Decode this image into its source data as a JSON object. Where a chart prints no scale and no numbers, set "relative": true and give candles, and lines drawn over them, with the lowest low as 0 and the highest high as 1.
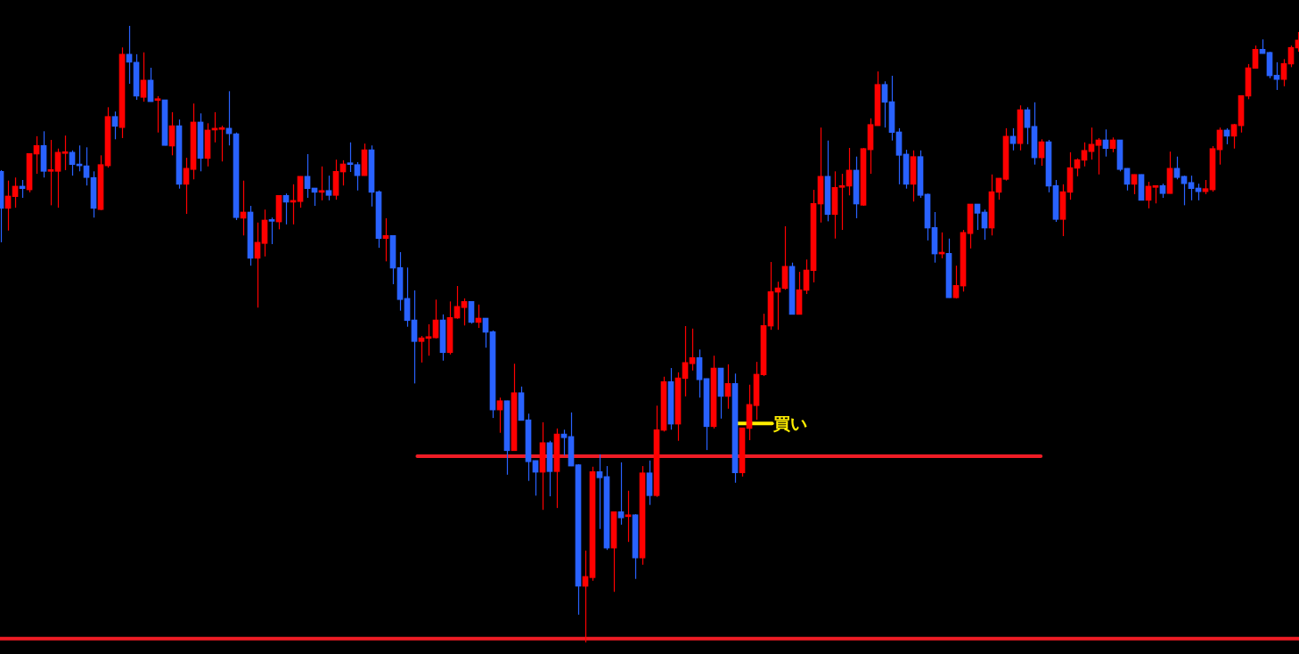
{
  "chart_data": {
    "type": "candlestick",
    "relative": true,
    "categories": [
      null,
      null,
      null,
      null,
      null,
      null,
      null,
      null,
      null,
      null,
      null,
      null,
      null,
      null,
      null,
      null,
      null,
      null,
      null,
      null,
      null,
      null,
      null,
      null,
      null,
      null,
      null,
      null,
      null,
      null,
      null,
      null,
      null,
      null,
      null,
      null,
      null,
      null,
      null,
      null,
      null,
      null,
      null,
      null,
      null,
      null,
      null,
      null,
      null,
      null,
      null,
      null,
      null,
      null,
      null,
      null,
      null,
      null,
      null,
      null,
      null,
      null,
      null,
      null,
      null,
      null,
      null,
      null,
      null,
      null,
      null,
      null,
      null,
      null,
      null,
      null,
      null,
      null,
      null,
      null,
      null,
      null,
      null,
      null,
      null,
      null,
      null,
      null,
      null,
      null,
      null,
      null,
      null,
      null,
      null,
      null,
      null,
      null,
      null,
      null,
      null,
      null,
      null,
      null,
      null,
      null,
      null,
      null,
      null,
      null,
      null,
      null,
      null,
      null,
      null,
      null,
      null,
      null,
      null,
      null,
      null,
      null,
      null,
      null,
      null,
      null,
      null,
      null,
      null,
      null,
      null,
      null,
      null,
      null,
      null,
      null,
      null,
      null,
      null,
      null,
      null,
      null,
      null,
      null,
      null,
      null,
      null,
      null,
      null,
      null,
      null,
      null,
      null,
      null,
      null,
      null,
      null,
      null,
      null,
      null,
      null,
      null,
      null,
      null,
      null,
      null,
      null,
      null,
      null,
      null,
      null,
      null,
      null,
      null,
      null,
      null,
      null,
      null,
      null,
      null,
      null,
      null,
      null
    ],
    "ohlc": [
      [
        0.764,
        0.766,
        0.649,
        0.704
      ],
      [
        0.704,
        0.749,
        0.668,
        0.724
      ],
      [
        0.723,
        0.754,
        0.705,
        0.74
      ],
      [
        0.74,
        0.75,
        0.721,
        0.736
      ],
      [
        0.734,
        0.793,
        0.73,
        0.793
      ],
      [
        0.792,
        0.821,
        0.76,
        0.806
      ],
      [
        0.806,
        0.829,
        0.754,
        0.764
      ],
      [
        0.764,
        0.815,
        0.709,
        0.766
      ],
      [
        0.764,
        0.801,
        0.705,
        0.795
      ],
      [
        0.793,
        0.822,
        0.766,
        0.795
      ],
      [
        0.795,
        0.798,
        0.757,
        0.775
      ],
      [
        0.775,
        0.806,
        0.764,
        0.773
      ],
      [
        0.773,
        0.803,
        0.741,
        0.754
      ],
      [
        0.754,
        0.764,
        0.689,
        0.704
      ],
      [
        0.702,
        0.79,
        0.701,
        0.775
      ],
      [
        0.773,
        0.868,
        0.77,
        0.853
      ],
      [
        0.853,
        0.861,
        0.816,
        0.837
      ],
      [
        0.835,
        0.965,
        0.818,
        0.954
      ],
      [
        0.954,
        1.0,
        0.906,
        0.941
      ],
      [
        0.941,
        0.954,
        0.88,
        0.886
      ],
      [
        0.884,
        0.957,
        0.877,
        0.912
      ],
      [
        0.912,
        0.932,
        0.877,
        0.877
      ],
      [
        0.879,
        0.886,
        0.827,
        0.88
      ],
      [
        0.88,
        0.88,
        0.806,
        0.806
      ],
      [
        0.805,
        0.86,
        0.79,
        0.838
      ],
      [
        0.838,
        0.848,
        0.736,
        0.743
      ],
      [
        0.743,
        0.786,
        0.695,
        0.769
      ],
      [
        0.767,
        0.874,
        0.751,
        0.844
      ],
      [
        0.844,
        0.858,
        0.764,
        0.785
      ],
      [
        0.785,
        0.842,
        0.772,
        0.831
      ],
      [
        0.831,
        0.86,
        0.811,
        0.834
      ],
      [
        0.832,
        0.838,
        0.78,
        0.834
      ],
      [
        0.834,
        0.894,
        0.806,
        0.825
      ],
      [
        0.825,
        0.827,
        0.685,
        0.689
      ],
      [
        0.688,
        0.749,
        0.66,
        0.698
      ],
      [
        0.698,
        0.708,
        0.611,
        0.623
      ],
      [
        0.623,
        0.681,
        0.543,
        0.649
      ],
      [
        0.647,
        0.702,
        0.626,
        0.685
      ],
      [
        0.685,
        0.689,
        0.646,
        0.683
      ],
      [
        0.682,
        0.725,
        0.67,
        0.725
      ],
      [
        0.725,
        0.728,
        0.678,
        0.714
      ],
      [
        0.714,
        0.743,
        0.678,
        0.715
      ],
      [
        0.715,
        0.756,
        0.705,
        0.756
      ],
      [
        0.756,
        0.792,
        0.721,
        0.736
      ],
      [
        0.737,
        0.737,
        0.708,
        0.73
      ],
      [
        0.73,
        0.772,
        0.717,
        0.731
      ],
      [
        0.733,
        0.757,
        0.717,
        0.725
      ],
      [
        0.725,
        0.783,
        0.718,
        0.764
      ],
      [
        0.763,
        0.782,
        0.741,
        0.776
      ],
      [
        0.776,
        0.811,
        0.763,
        0.775
      ],
      [
        0.775,
        0.779,
        0.733,
        0.757
      ],
      [
        0.757,
        0.809,
        0.757,
        0.799
      ],
      [
        0.799,
        0.806,
        0.707,
        0.73
      ],
      [
        0.731,
        0.733,
        0.64,
        0.655
      ],
      [
        0.655,
        0.688,
        0.618,
        0.66
      ],
      [
        0.66,
        0.66,
        0.581,
        0.607
      ],
      [
        0.608,
        0.633,
        0.538,
        0.556
      ],
      [
        0.558,
        0.608,
        0.512,
        0.522
      ],
      [
        0.523,
        0.571,
        0.42,
        0.488
      ],
      [
        0.488,
        0.497,
        0.454,
        0.494
      ],
      [
        0.493,
        0.516,
        0.465,
        0.496
      ],
      [
        0.494,
        0.556,
        0.493,
        0.523
      ],
      [
        0.523,
        0.532,
        0.457,
        0.47
      ],
      [
        0.47,
        0.553,
        0.467,
        0.527
      ],
      [
        0.526,
        0.578,
        0.525,
        0.545
      ],
      [
        0.543,
        0.558,
        0.514,
        0.553
      ],
      [
        0.553,
        0.553,
        0.517,
        0.519
      ],
      [
        0.519,
        0.548,
        0.51,
        0.526
      ],
      [
        0.526,
        0.526,
        0.478,
        0.503
      ],
      [
        0.504,
        0.506,
        0.364,
        0.377
      ],
      [
        0.377,
        0.397,
        0.34,
        0.392
      ],
      [
        0.392,
        0.392,
        0.272,
        0.311
      ],
      [
        0.311,
        0.452,
        0.311,
        0.405
      ],
      [
        0.405,
        0.415,
        0.36,
        0.36
      ],
      [
        0.361,
        0.371,
        0.262,
        0.293
      ],
      [
        0.295,
        0.295,
        0.238,
        0.276
      ],
      [
        0.276,
        0.357,
        0.215,
        0.324
      ],
      [
        0.324,
        0.327,
        0.237,
        0.277
      ],
      [
        0.277,
        0.347,
        0.218,
        0.338
      ],
      [
        0.338,
        0.345,
        0.303,
        0.332
      ],
      [
        0.334,
        0.373,
        0.286,
        0.286
      ],
      [
        0.288,
        0.289,
        0.045,
        0.091
      ],
      [
        0.091,
        0.149,
        0,
        0.107
      ],
      [
        0.105,
        0.285,
        0.1,
        0.277
      ],
      [
        0.277,
        0.305,
        0.184,
        0.267
      ],
      [
        0.269,
        0.286,
        0.15,
        0.153
      ],
      [
        0.153,
        0.212,
        0.082,
        0.212
      ],
      [
        0.212,
        0.292,
        0.191,
        0.202
      ],
      [
        0.204,
        0.246,
        0.163,
        0.207
      ],
      [
        0.207,
        0.208,
        0.103,
        0.137
      ],
      [
        0.137,
        0.286,
        0.126,
        0.275
      ],
      [
        0.275,
        0.295,
        0.223,
        0.238
      ],
      [
        0.238,
        0.384,
        0.236,
        0.345
      ],
      [
        0.344,
        0.431,
        0.342,
        0.423
      ],
      [
        0.423,
        0.445,
        0.345,
        0.354
      ],
      [
        0.354,
        0.438,
        0.327,
        0.429
      ],
      [
        0.428,
        0.513,
        0.399,
        0.454
      ],
      [
        0.452,
        0.509,
        0.441,
        0.462
      ],
      [
        0.462,
        0.475,
        0.397,
        0.426
      ],
      [
        0.428,
        0.428,
        0.312,
        0.35
      ],
      [
        0.35,
        0.465,
        0.347,
        0.445
      ],
      [
        0.445,
        0.445,
        0.363,
        0.399
      ],
      [
        0.399,
        0.451,
        0.379,
        0.42
      ],
      [
        0.42,
        0.436,
        0.259,
        0.275
      ],
      [
        0.275,
        0.348,
        0.269,
        0.348
      ],
      [
        0.347,
        0.418,
        0.328,
        0.386
      ],
      [
        0.384,
        0.455,
        0.361,
        0.435
      ],
      [
        0.434,
        0.533,
        0.432,
        0.514
      ],
      [
        0.513,
        0.617,
        0.507,
        0.569
      ],
      [
        0.568,
        0.585,
        0.507,
        0.575
      ],
      [
        0.574,
        0.675,
        0.572,
        0.61
      ],
      [
        0.61,
        0.616,
        0.532,
        0.532
      ],
      [
        0.532,
        0.601,
        0.532,
        0.572
      ],
      [
        0.571,
        0.621,
        0.565,
        0.604
      ],
      [
        0.603,
        0.734,
        0.584,
        0.712
      ],
      [
        0.711,
        0.835,
        0.681,
        0.756
      ],
      [
        0.756,
        0.814,
        0.683,
        0.694
      ],
      [
        0.694,
        0.764,
        0.655,
        0.738
      ],
      [
        0.738,
        0.76,
        0.669,
        0.741
      ],
      [
        0.74,
        0.802,
        0.725,
        0.766
      ],
      [
        0.766,
        0.788,
        0.688,
        0.711
      ],
      [
        0.709,
        0.802,
        0.708,
        0.801
      ],
      [
        0.799,
        0.85,
        0.76,
        0.84
      ],
      [
        0.838,
        0.926,
        0.838,
        0.905
      ],
      [
        0.905,
        0.91,
        0.835,
        0.876
      ],
      [
        0.877,
        0.919,
        0.814,
        0.827
      ],
      [
        0.828,
        0.834,
        0.743,
        0.79
      ],
      [
        0.792,
        0.799,
        0.736,
        0.743
      ],
      [
        0.743,
        0.798,
        0.715,
        0.788
      ],
      [
        0.788,
        0.798,
        0.721,
        0.725
      ],
      [
        0.727,
        0.728,
        0.652,
        0.672
      ],
      [
        0.673,
        0.698,
        0.616,
        0.63
      ],
      [
        0.63,
        0.665,
        0.623,
        0.631
      ],
      [
        0.631,
        0.655,
        0.559,
        0.559
      ],
      [
        0.559,
        0.611,
        0.558,
        0.579
      ],
      [
        0.578,
        0.669,
        0.569,
        0.665
      ],
      [
        0.663,
        0.711,
        0.639,
        0.711
      ],
      [
        0.711,
        0.711,
        0.669,
        0.696
      ],
      [
        0.698,
        0.702,
        0.653,
        0.672
      ],
      [
        0.672,
        0.759,
        0.66,
        0.731
      ],
      [
        0.73,
        0.753,
        0.718,
        0.753
      ],
      [
        0.751,
        0.834,
        0.749,
        0.821
      ],
      [
        0.821,
        0.834,
        0.798,
        0.809
      ],
      [
        0.809,
        0.871,
        0.798,
        0.864
      ],
      [
        0.864,
        0.868,
        0.808,
        0.835
      ],
      [
        0.837,
        0.876,
        0.775,
        0.786
      ],
      [
        0.786,
        0.816,
        0.773,
        0.812
      ],
      [
        0.812,
        0.815,
        0.73,
        0.74
      ],
      [
        0.741,
        0.75,
        0.682,
        0.686
      ],
      [
        0.686,
        0.743,
        0.659,
        0.731
      ],
      [
        0.73,
        0.795,
        0.718,
        0.77
      ],
      [
        0.769,
        0.785,
        0.756,
        0.783
      ],
      [
        0.782,
        0.811,
        0.772,
        0.798
      ],
      [
        0.796,
        0.835,
        0.783,
        0.808
      ],
      [
        0.806,
        0.818,
        0.759,
        0.815
      ],
      [
        0.815,
        0.832,
        0.788,
        0.801
      ],
      [
        0.801,
        0.819,
        0.795,
        0.815
      ],
      [
        0.815,
        0.815,
        0.764,
        0.767
      ],
      [
        0.769,
        0.769,
        0.733,
        0.743
      ],
      [
        0.743,
        0.759,
        0.727,
        0.759
      ],
      [
        0.759,
        0.759,
        0.717,
        0.717
      ],
      [
        0.717,
        0.747,
        0.704,
        0.74
      ],
      [
        0.738,
        0.741,
        0.712,
        0.741
      ],
      [
        0.741,
        0.744,
        0.721,
        0.728
      ],
      [
        0.728,
        0.796,
        0.728,
        0.769
      ],
      [
        0.769,
        0.788,
        0.751,
        0.754
      ],
      [
        0.756,
        0.757,
        0.709,
        0.744
      ],
      [
        0.746,
        0.757,
        0.717,
        0.736
      ],
      [
        0.737,
        0.744,
        0.717,
        0.731
      ],
      [
        0.731,
        0.75,
        0.727,
        0.736
      ],
      [
        0.734,
        0.805,
        0.731,
        0.801
      ],
      [
        0.799,
        0.835,
        0.775,
        0.831
      ],
      [
        0.831,
        0.834,
        0.808,
        0.821
      ],
      [
        0.821,
        0.841,
        0.801,
        0.84
      ],
      [
        0.838,
        0.887,
        0.827,
        0.887
      ],
      [
        0.886,
        0.938,
        0.881,
        0.932
      ],
      [
        0.931,
        0.968,
        0.931,
        0.962
      ],
      [
        0.962,
        0.978,
        0.955,
        0.955
      ],
      [
        0.957,
        0.958,
        0.915,
        0.919
      ],
      [
        0.92,
        0.941,
        0.896,
        0.913
      ],
      [
        0.913,
        0.946,
        0.902,
        0.939
      ],
      [
        0.938,
        0.968,
        0.933,
        0.965
      ],
      [
        0.964,
        0.99,
        0.958,
        0.977
      ]
    ],
    "colors": [
      "#2962ff",
      "#ff0000",
      "#ff0000",
      "#2962ff",
      "#ff0000",
      "#ff0000",
      "#2962ff",
      "#ff0000",
      "#ff0000",
      "#ff0000",
      "#2962ff",
      "#2962ff",
      "#2962ff",
      "#2962ff",
      "#ff0000",
      "#ff0000",
      "#2962ff",
      "#ff0000",
      "#2962ff",
      "#2962ff",
      "#ff0000",
      "#2962ff",
      "#ff0000",
      "#2962ff",
      "#ff0000",
      "#2962ff",
      "#ff0000",
      "#ff0000",
      "#2962ff",
      "#ff0000",
      "#ff0000",
      "#ff0000",
      "#2962ff",
      "#2962ff",
      "#ff0000",
      "#2962ff",
      "#ff0000",
      "#ff0000",
      "#2962ff",
      "#ff0000",
      "#2962ff",
      "#ff0000",
      "#ff0000",
      "#2962ff",
      "#2962ff",
      "#ff0000",
      "#2962ff",
      "#ff0000",
      "#ff0000",
      "#2962ff",
      "#2962ff",
      "#ff0000",
      "#2962ff",
      "#2962ff",
      "#ff0000",
      "#2962ff",
      "#2962ff",
      "#2962ff",
      "#2962ff",
      "#ff0000",
      "#ff0000",
      "#ff0000",
      "#2962ff",
      "#ff0000",
      "#ff0000",
      "#ff0000",
      "#2962ff",
      "#ff0000",
      "#2962ff",
      "#2962ff",
      "#ff0000",
      "#2962ff",
      "#ff0000",
      "#2962ff",
      "#2962ff",
      "#2962ff",
      "#ff0000",
      "#2962ff",
      "#ff0000",
      "#2962ff",
      "#2962ff",
      "#2962ff",
      "#ff0000",
      "#ff0000",
      "#2962ff",
      "#2962ff",
      "#ff0000",
      "#2962ff",
      "#ff0000",
      "#2962ff",
      "#ff0000",
      "#2962ff",
      "#ff0000",
      "#ff0000",
      "#2962ff",
      "#ff0000",
      "#ff0000",
      "#ff0000",
      "#2962ff",
      "#2962ff",
      "#ff0000",
      "#2962ff",
      "#ff0000",
      "#2962ff",
      "#ff0000",
      "#ff0000",
      "#ff0000",
      "#ff0000",
      "#ff0000",
      "#ff0000",
      "#ff0000",
      "#2962ff",
      "#ff0000",
      "#ff0000",
      "#ff0000",
      "#ff0000",
      "#2962ff",
      "#ff0000",
      "#ff0000",
      "#ff0000",
      "#2962ff",
      "#ff0000",
      "#ff0000",
      "#ff0000",
      "#2962ff",
      "#2962ff",
      "#2962ff",
      "#2962ff",
      "#ff0000",
      "#2962ff",
      "#2962ff",
      "#2962ff",
      "#ff0000",
      "#2962ff",
      "#ff0000",
      "#ff0000",
      "#ff0000",
      "#2962ff",
      "#2962ff",
      "#ff0000",
      "#ff0000",
      "#ff0000",
      "#2962ff",
      "#ff0000",
      "#2962ff",
      "#2962ff",
      "#ff0000",
      "#2962ff",
      "#2962ff",
      "#ff0000",
      "#ff0000",
      "#ff0000",
      "#ff0000",
      "#ff0000",
      "#ff0000",
      "#2962ff",
      "#ff0000",
      "#2962ff",
      "#2962ff",
      "#ff0000",
      "#2962ff",
      "#ff0000",
      "#ff0000",
      "#2962ff",
      "#ff0000",
      "#2962ff",
      "#2962ff",
      "#2962ff",
      "#2962ff",
      "#ff0000",
      "#ff0000",
      "#ff0000",
      "#2962ff",
      "#ff0000",
      "#ff0000",
      "#ff0000",
      "#ff0000",
      "#2962ff",
      "#2962ff",
      "#2962ff",
      "#ff0000",
      "#ff0000",
      "#ff0000"
    ],
    "ref_lines": [
      {
        "axis": "y",
        "value": 0.006,
        "color": "#ee1c25"
      },
      {
        "axis": "y",
        "value": 0.302,
        "color": "#ee1c25"
      },
      {
        "axis": "y",
        "value": 0.355,
        "color": "#ffee00",
        "label": "買い"
      }
    ]
  }
}
